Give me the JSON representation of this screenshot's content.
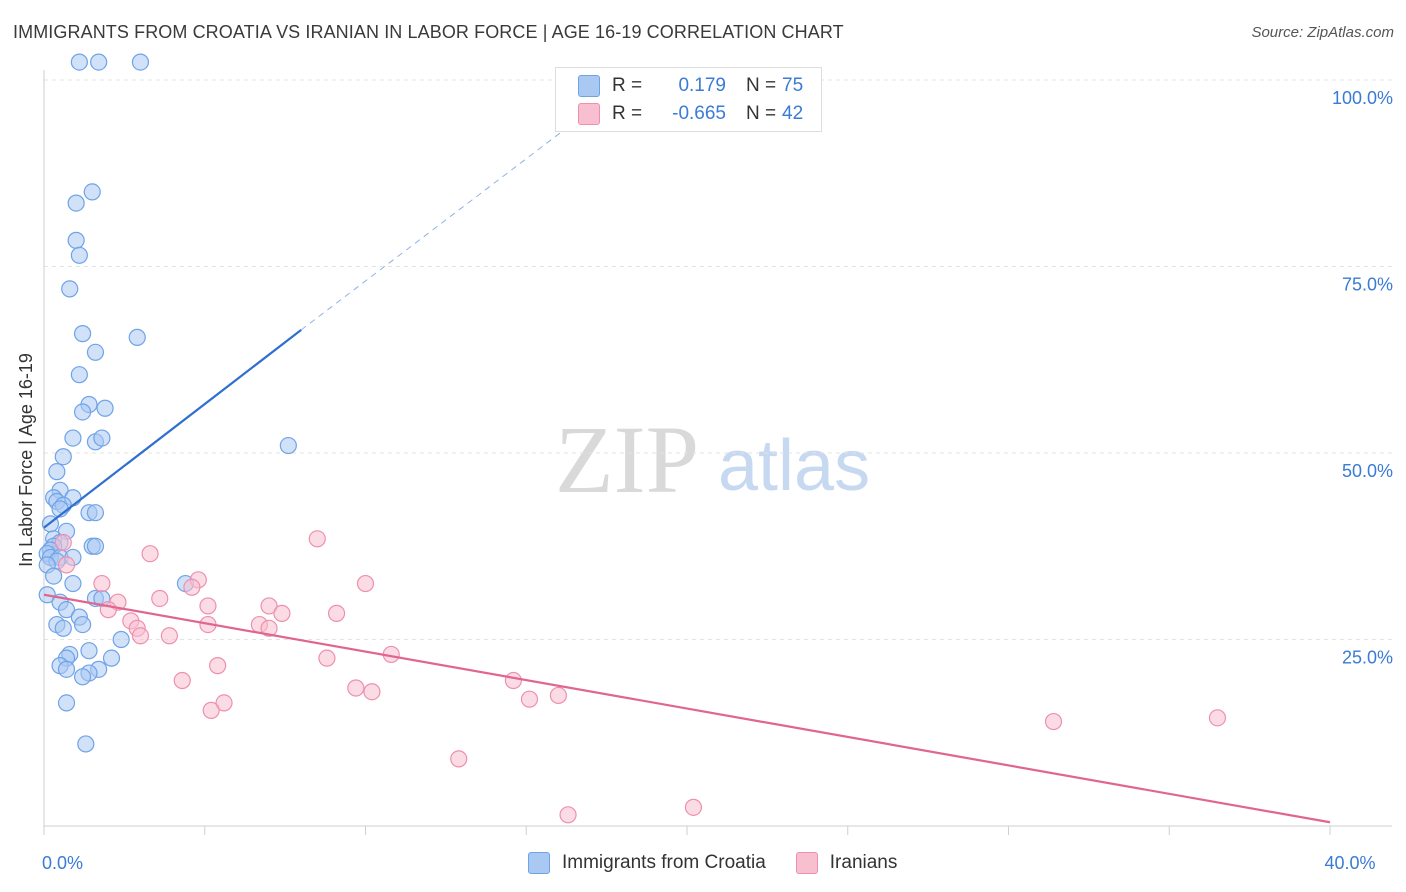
{
  "header": {
    "title": "IMMIGRANTS FROM CROATIA VS IRANIAN IN LABOR FORCE | AGE 16-19 CORRELATION CHART",
    "source": "Source: ZipAtlas.com"
  },
  "watermark": {
    "zip": "ZIP",
    "atlas": "atlas"
  },
  "legend": {
    "rows": [
      {
        "r_label": "R =",
        "r_value": "0.179",
        "n_label": "N =",
        "n_value": "75",
        "color": "#a9c8f2"
      },
      {
        "r_label": "R =",
        "r_value": "-0.665",
        "n_label": "N =",
        "n_value": "42",
        "color": "#f7bfd0"
      }
    ]
  },
  "bottom_legend": {
    "items": [
      {
        "label": "Immigrants from Croatia",
        "color": "#a9c8f2"
      },
      {
        "label": "Iranians",
        "color": "#f7bfd0"
      }
    ]
  },
  "chart_data": {
    "type": "scatter",
    "ylabel": "In Labor Force | Age 16-19",
    "xlim": [
      0,
      40
    ],
    "ylim": [
      0,
      100
    ],
    "x_tick_labels": [
      {
        "value": 0,
        "label": "0.0%"
      },
      {
        "value": 40,
        "label": "40.0%"
      }
    ],
    "y_tick_labels": [
      {
        "value": 100,
        "label": "100.0%"
      },
      {
        "value": 75,
        "label": "75.0%"
      },
      {
        "value": 50,
        "label": "50.0%"
      },
      {
        "value": 25,
        "label": "25.0%"
      }
    ],
    "grid": true,
    "series": [
      {
        "name": "Immigrants from Croatia",
        "color": "#6fa3e8",
        "fill": "#a9c8f2",
        "points": [
          [
            1.1,
            102.4
          ],
          [
            1.7,
            102.4
          ],
          [
            3.0,
            102.4
          ],
          [
            1.5,
            85.0
          ],
          [
            1.0,
            83.5
          ],
          [
            1.0,
            78.5
          ],
          [
            1.1,
            76.5
          ],
          [
            0.8,
            72.0
          ],
          [
            1.2,
            66.0
          ],
          [
            2.9,
            65.5
          ],
          [
            1.6,
            63.5
          ],
          [
            1.1,
            60.5
          ],
          [
            1.4,
            56.5
          ],
          [
            1.9,
            56.0
          ],
          [
            1.2,
            55.5
          ],
          [
            0.9,
            52.0
          ],
          [
            1.6,
            51.5
          ],
          [
            1.8,
            52.0
          ],
          [
            7.6,
            51.0
          ],
          [
            0.6,
            49.5
          ],
          [
            0.4,
            47.5
          ],
          [
            0.5,
            45.0
          ],
          [
            0.9,
            44.0
          ],
          [
            0.3,
            44.0
          ],
          [
            0.4,
            43.5
          ],
          [
            0.6,
            43.0
          ],
          [
            0.5,
            42.5
          ],
          [
            1.4,
            42.0
          ],
          [
            1.6,
            42.0
          ],
          [
            0.2,
            40.5
          ],
          [
            0.7,
            39.5
          ],
          [
            0.3,
            38.5
          ],
          [
            0.5,
            38.0
          ],
          [
            1.5,
            37.5
          ],
          [
            1.6,
            37.5
          ],
          [
            0.3,
            37.5
          ],
          [
            0.2,
            37.0
          ],
          [
            0.1,
            36.5
          ],
          [
            0.2,
            36.0
          ],
          [
            0.5,
            36.0
          ],
          [
            0.9,
            36.0
          ],
          [
            0.4,
            35.5
          ],
          [
            0.1,
            35.0
          ],
          [
            0.3,
            33.5
          ],
          [
            0.9,
            32.5
          ],
          [
            4.4,
            32.5
          ],
          [
            0.1,
            31.0
          ],
          [
            1.6,
            30.5
          ],
          [
            1.8,
            30.5
          ],
          [
            0.5,
            30.0
          ],
          [
            0.7,
            29.0
          ],
          [
            1.1,
            28.0
          ],
          [
            1.2,
            27.0
          ],
          [
            0.4,
            27.0
          ],
          [
            0.6,
            26.5
          ],
          [
            2.4,
            25.0
          ],
          [
            1.4,
            23.5
          ],
          [
            0.8,
            23.0
          ],
          [
            0.7,
            22.5
          ],
          [
            2.1,
            22.5
          ],
          [
            0.5,
            21.5
          ],
          [
            0.7,
            21.0
          ],
          [
            1.7,
            21.0
          ],
          [
            1.4,
            20.5
          ],
          [
            1.2,
            20.0
          ],
          [
            0.7,
            16.5
          ],
          [
            1.3,
            11.0
          ]
        ]
      },
      {
        "name": "Iranians",
        "color": "#ee8fb0",
        "fill": "#f7bfd0",
        "points": [
          [
            8.5,
            38.5
          ],
          [
            3.3,
            36.5
          ],
          [
            0.6,
            38.0
          ],
          [
            0.7,
            35.0
          ],
          [
            4.8,
            33.0
          ],
          [
            10.0,
            32.5
          ],
          [
            1.8,
            32.5
          ],
          [
            4.6,
            32.0
          ],
          [
            3.6,
            30.5
          ],
          [
            5.1,
            29.5
          ],
          [
            2.3,
            30.0
          ],
          [
            7.0,
            29.5
          ],
          [
            2.0,
            29.0
          ],
          [
            7.4,
            28.5
          ],
          [
            9.1,
            28.5
          ],
          [
            2.7,
            27.5
          ],
          [
            5.1,
            27.0
          ],
          [
            6.7,
            27.0
          ],
          [
            7.0,
            26.5
          ],
          [
            2.9,
            26.5
          ],
          [
            3.0,
            25.5
          ],
          [
            3.9,
            25.5
          ],
          [
            10.8,
            23.0
          ],
          [
            8.8,
            22.5
          ],
          [
            5.4,
            21.5
          ],
          [
            4.3,
            19.5
          ],
          [
            14.6,
            19.5
          ],
          [
            9.7,
            18.5
          ],
          [
            10.2,
            18.0
          ],
          [
            16.0,
            17.5
          ],
          [
            15.1,
            17.0
          ],
          [
            5.6,
            16.5
          ],
          [
            5.2,
            15.5
          ],
          [
            31.4,
            14.0
          ],
          [
            36.5,
            14.5
          ],
          [
            12.9,
            9.0
          ],
          [
            16.3,
            1.5
          ],
          [
            20.2,
            2.5
          ]
        ]
      }
    ],
    "trendlines": [
      {
        "series": "Immigrants from Croatia",
        "color": "#2f6fcf",
        "x0": 0.0,
        "y0": 40.0,
        "x1": 8.0,
        "y1": 66.5,
        "dashed_to_x": 17.0,
        "dashed_to_y": 96.0
      },
      {
        "series": "Iranians",
        "color": "#e0668f",
        "x0": 0.0,
        "y0": 31.0,
        "x1": 40.0,
        "y1": 0.5
      }
    ]
  }
}
